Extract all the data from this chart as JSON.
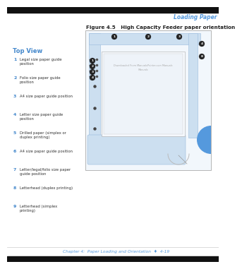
{
  "bg_color": "#ffffff",
  "header_text": "Loading Paper",
  "header_color": "#5599dd",
  "figure_title": "Figure 4.5   High Capacity Feeder paper orientation",
  "figure_title_color": "#222222",
  "footer_text": "Chapter 4:  Paper Loading and Orientation  ♦  4-19",
  "footer_color": "#5599dd",
  "top_view_label": "Top View",
  "top_view_color": "#4488cc",
  "list_items": [
    {
      "num": "1",
      "text": "Legal size paper guide\nposition"
    },
    {
      "num": "2",
      "text": "Folio size paper guide\nposition"
    },
    {
      "num": "3",
      "text": "A4 size paper guide position"
    },
    {
      "num": "4",
      "text": "Letter size paper guide\nposition"
    },
    {
      "num": "5",
      "text": "Drilled paper (simplex or\nduplex printing)"
    },
    {
      "num": "6",
      "text": "A4 size paper guide position"
    },
    {
      "num": "7",
      "text": "Letter/legal/folio size paper\nguide position"
    },
    {
      "num": "8",
      "text": "Letterhead (duplex printing)"
    },
    {
      "num": "9",
      "text": "Letterhead (simplex\nprinting)"
    }
  ],
  "list_num_color": "#4488cc",
  "list_text_color": "#333333",
  "black_bar_color": "#111111",
  "black_bar_height": 8,
  "diagram_border": "#aaaaaa",
  "light_blue": "#ccdff0",
  "mid_blue": "#aaccee",
  "paper_color": "#f5f8fc",
  "watermark_text": "Downloaded From ManualsPrinter.com Manuals",
  "watermark_sub": "Manuals",
  "watermark_color": "#aaaaaa",
  "circle_bg": "#222222",
  "circle_fg": "#ffffff",
  "tab_blue": "#5599dd"
}
